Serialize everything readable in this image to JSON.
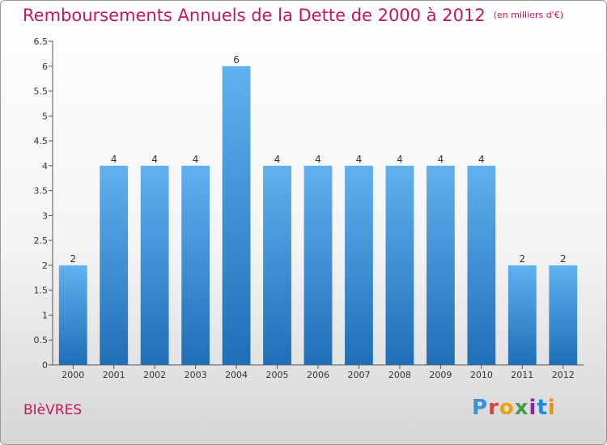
{
  "chart_data": {
    "type": "bar",
    "title": "Remboursements Annuels de la Dette de 2000 à 2012",
    "unit": "(en milliers d'€)",
    "categories": [
      "2000",
      "2001",
      "2002",
      "2003",
      "2004",
      "2005",
      "2006",
      "2007",
      "2008",
      "2009",
      "2010",
      "2011",
      "2012"
    ],
    "values": [
      2,
      4,
      4,
      4,
      6,
      4,
      4,
      4,
      4,
      4,
      4,
      2,
      2
    ],
    "value_labels": [
      "2",
      "4",
      "4",
      "4",
      "6",
      "4",
      "4",
      "4",
      "4",
      "4",
      "4",
      "2",
      "2"
    ],
    "yticks": [
      "0",
      "0.5",
      "1",
      "1.5",
      "2",
      "2.5",
      "3",
      "3.5",
      "4",
      "4.5",
      "5",
      "5.5",
      "6",
      "6.5"
    ],
    "ylim": [
      0,
      6.5
    ],
    "grid": false,
    "bar_color": "#3a8fd8"
  },
  "footer": {
    "commune": "BIèVRES",
    "logo": "Proxiti",
    "logo_colors": [
      "#3a8fd8",
      "#e53935",
      "#f39c12",
      "#43a047",
      "#8e24aa",
      "#1e88e5",
      "#fb8c00"
    ]
  }
}
